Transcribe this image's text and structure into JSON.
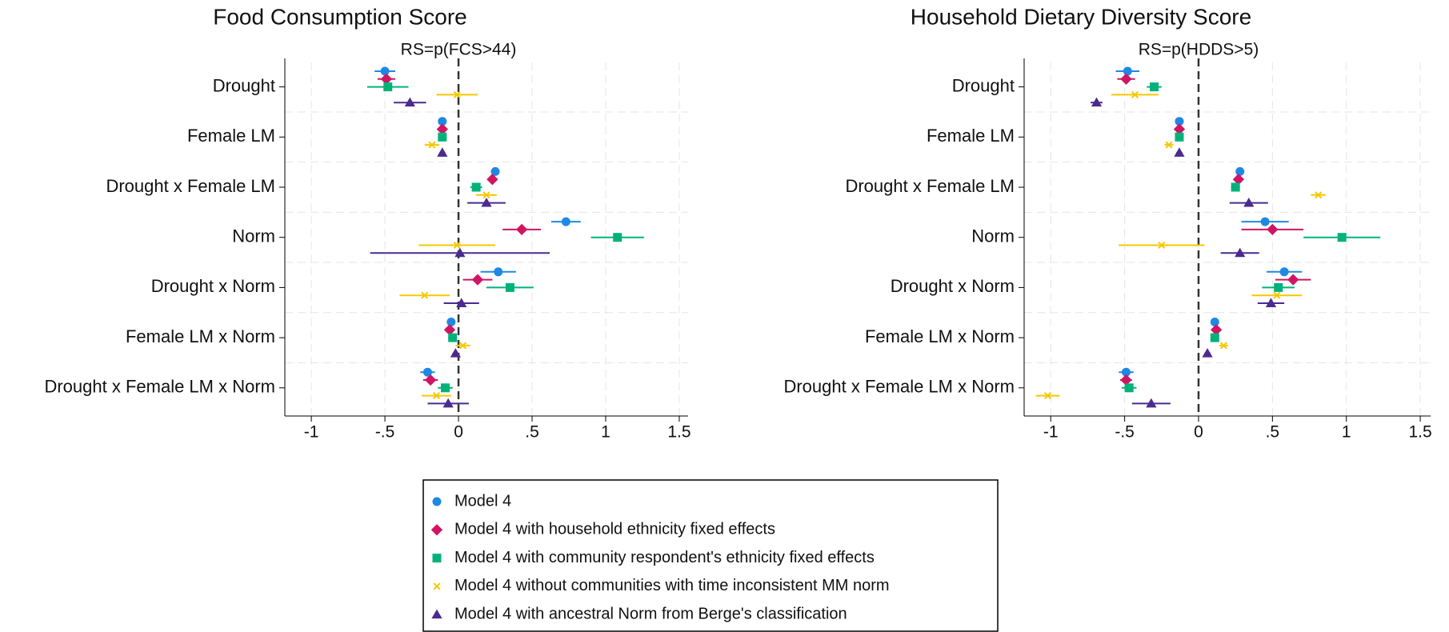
{
  "chart_data": [
    {
      "type": "coefplot",
      "title": "Food Consumption Score",
      "annotation": "RS=p(FCS>44)",
      "categories": [
        "Drought",
        "Female LM",
        "Drought x Female LM",
        "Norm",
        "Drought x Norm",
        "Female LM x Norm",
        "Drought x Female LM x Norm"
      ],
      "xlim": [
        -1.18,
        1.56
      ],
      "xticks": [
        -1,
        {
          "value": -0.5,
          "label": "-.5"
        },
        0,
        {
          "value": 0.5,
          "label": ".5"
        },
        1,
        1.5
      ],
      "reference_line": 0,
      "grid": true,
      "series": [
        {
          "values": [
            -0.5,
            -0.11,
            0.25,
            0.73,
            0.27,
            -0.05,
            -0.21
          ],
          "ci_low": [
            -0.57,
            -0.13,
            0.22,
            0.63,
            0.15,
            -0.07,
            -0.26
          ],
          "ci_high": [
            -0.43,
            -0.09,
            0.28,
            0.83,
            0.39,
            -0.03,
            -0.16
          ]
        },
        {
          "values": [
            -0.49,
            -0.11,
            0.23,
            0.43,
            0.13,
            -0.06,
            -0.19
          ],
          "ci_low": [
            -0.55,
            -0.13,
            0.2,
            0.3,
            0.03,
            -0.08,
            -0.24
          ],
          "ci_high": [
            -0.43,
            -0.09,
            0.26,
            0.56,
            0.23,
            -0.04,
            -0.14
          ]
        },
        {
          "values": [
            -0.48,
            -0.11,
            0.12,
            1.08,
            0.35,
            -0.04,
            -0.09
          ],
          "ci_low": [
            -0.62,
            -0.13,
            0.08,
            0.9,
            0.19,
            -0.07,
            -0.14
          ],
          "ci_high": [
            -0.34,
            -0.09,
            0.16,
            1.26,
            0.51,
            -0.01,
            -0.04
          ]
        },
        {
          "values": [
            -0.01,
            -0.18,
            0.19,
            -0.01,
            -0.23,
            0.03,
            -0.15
          ],
          "ci_low": [
            -0.15,
            -0.23,
            0.12,
            -0.27,
            -0.4,
            -0.02,
            -0.25
          ],
          "ci_high": [
            0.13,
            -0.13,
            0.26,
            0.25,
            -0.06,
            0.08,
            -0.05
          ]
        },
        {
          "values": [
            -0.33,
            -0.11,
            0.19,
            0.01,
            0.02,
            -0.02,
            -0.07
          ],
          "ci_low": [
            -0.44,
            -0.13,
            0.06,
            -0.6,
            -0.1,
            -0.04,
            -0.21
          ],
          "ci_high": [
            -0.22,
            -0.09,
            0.32,
            0.62,
            0.14,
            0.0,
            0.07
          ]
        }
      ]
    },
    {
      "type": "coefplot",
      "title": "Household Dietary Diversity Score",
      "annotation": "RS=p(HDDS>5)",
      "categories": [
        "Drought",
        "Female LM",
        "Drought x Female LM",
        "Norm",
        "Drought x Norm",
        "Female LM x Norm",
        "Drought x Female LM x Norm"
      ],
      "xlim": [
        -1.18,
        1.57
      ],
      "xticks": [
        -1,
        {
          "value": -0.5,
          "label": "-.5"
        },
        0,
        {
          "value": 0.5,
          "label": ".5"
        },
        1,
        1.5
      ],
      "reference_line": 0,
      "grid": true,
      "series": [
        {
          "values": [
            -0.48,
            -0.13,
            0.28,
            0.45,
            0.58,
            0.11,
            -0.49
          ],
          "ci_low": [
            -0.56,
            -0.15,
            0.26,
            0.29,
            0.46,
            0.1,
            -0.54
          ],
          "ci_high": [
            -0.4,
            -0.11,
            0.3,
            0.61,
            0.7,
            0.12,
            -0.44
          ]
        },
        {
          "values": [
            -0.49,
            -0.13,
            0.27,
            0.5,
            0.64,
            0.12,
            -0.49
          ],
          "ci_low": [
            -0.55,
            -0.15,
            0.25,
            0.29,
            0.52,
            0.1,
            -0.53
          ],
          "ci_high": [
            -0.43,
            -0.11,
            0.29,
            0.71,
            0.76,
            0.14,
            -0.45
          ]
        },
        {
          "values": [
            -0.3,
            -0.13,
            0.25,
            0.97,
            0.54,
            0.11,
            -0.47
          ],
          "ci_low": [
            -0.35,
            -0.15,
            0.22,
            0.71,
            0.43,
            0.09,
            -0.52
          ],
          "ci_high": [
            -0.25,
            -0.11,
            0.28,
            1.23,
            0.65,
            0.13,
            -0.42
          ]
        },
        {
          "values": [
            -0.43,
            -0.2,
            0.81,
            -0.25,
            0.53,
            0.17,
            -1.02
          ],
          "ci_low": [
            -0.59,
            -0.23,
            0.76,
            -0.54,
            0.36,
            0.14,
            -1.1
          ],
          "ci_high": [
            -0.27,
            -0.17,
            0.86,
            0.04,
            0.7,
            0.2,
            -0.94
          ]
        },
        {
          "values": [
            -0.69,
            -0.13,
            0.34,
            0.28,
            0.49,
            0.06,
            -0.32
          ],
          "ci_low": [
            -0.73,
            -0.15,
            0.21,
            0.15,
            0.4,
            0.04,
            -0.45
          ],
          "ci_high": [
            -0.65,
            -0.11,
            0.47,
            0.41,
            0.58,
            0.08,
            -0.19
          ]
        }
      ]
    }
  ],
  "legend": [
    {
      "name": "Model 4",
      "color": "#1e88e5",
      "marker": "circle"
    },
    {
      "name": "Model 4 with household ethnicity fixed effects",
      "color": "#d01563",
      "marker": "diamond"
    },
    {
      "name": "Model 4 with community respondent's ethnicity fixed effects",
      "color": "#00b27a",
      "marker": "square"
    },
    {
      "name": "Model 4 without communities with time inconsistent MM norm",
      "color": "#f5c800",
      "marker": "x"
    },
    {
      "name": "Model 4 with ancestral Norm from Berge's classification",
      "color": "#4a2b8f",
      "marker": "triangle"
    }
  ]
}
